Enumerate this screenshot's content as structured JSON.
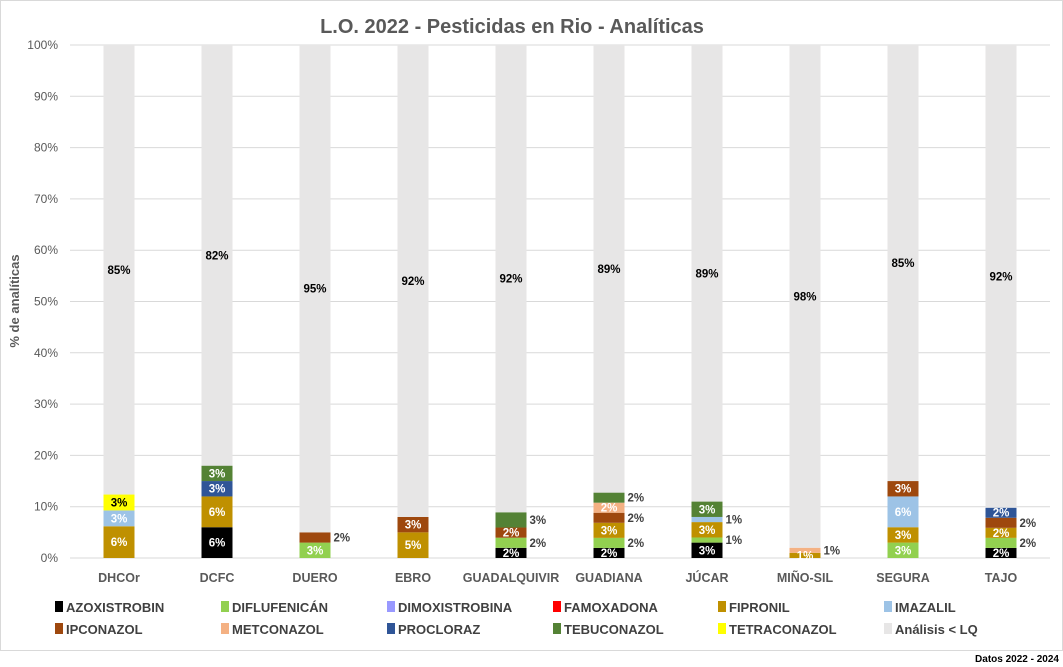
{
  "chart_data": {
    "type": "bar",
    "stacked": "percent",
    "title": "L.O. 2022 - Pesticidas en Rio - Analíticas",
    "xlabel": "",
    "ylabel": "% de analíticas",
    "ylim": [
      0,
      100
    ],
    "yticks": [
      "0%",
      "10%",
      "20%",
      "30%",
      "40%",
      "50%",
      "60%",
      "70%",
      "80%",
      "90%",
      "100%"
    ],
    "grid": true,
    "legend_position": "bottom",
    "categories": [
      "DHCOr",
      "DCFC",
      "DUERO",
      "EBRO",
      "GUADALQUIVIR",
      "GUADIANA",
      "JÚCAR",
      "MIÑO-SIL",
      "SEGURA",
      "TAJO"
    ],
    "series": [
      {
        "name": "AZOXISTROBIN",
        "color": "#000000",
        "label_color": "#ffffff",
        "values": [
          0,
          6,
          0,
          0,
          2,
          2,
          3,
          0,
          0,
          2
        ]
      },
      {
        "name": "DIFLUFENICÁN",
        "color": "#92D050",
        "label_color": "#ffffff",
        "values": [
          0,
          0,
          3,
          0,
          2,
          2,
          1,
          0,
          3,
          2
        ]
      },
      {
        "name": "DIMOXISTROBINA",
        "color": "#9999FF",
        "label_color": "#ffffff",
        "values": [
          0,
          0,
          0,
          0,
          0,
          0,
          0,
          0,
          0,
          0
        ]
      },
      {
        "name": "FAMOXADONA",
        "color": "#FF0000",
        "label_color": "#ffffff",
        "values": [
          0,
          0,
          0,
          0,
          0,
          0,
          0,
          0,
          0,
          0
        ]
      },
      {
        "name": "FIPRONIL",
        "color": "#BF9000",
        "label_color": "#ffffff",
        "values": [
          6,
          6,
          0,
          5,
          0,
          3,
          3,
          1,
          3,
          2
        ]
      },
      {
        "name": "IMAZALIL",
        "color": "#9DC3E6",
        "label_color": "#ffffff",
        "values": [
          3,
          0,
          0,
          0,
          0,
          0,
          1,
          0,
          6,
          0
        ]
      },
      {
        "name": "IPCONAZOL",
        "color": "#9E480E",
        "label_color": "#ffffff",
        "values": [
          0,
          0,
          2,
          3,
          2,
          2,
          0,
          0,
          3,
          2
        ]
      },
      {
        "name": "METCONAZOL",
        "color": "#F4B183",
        "label_color": "#ffffff",
        "values": [
          0,
          0,
          0,
          0,
          0,
          2,
          0,
          1,
          0,
          0
        ]
      },
      {
        "name": "PROCLORAZ",
        "color": "#2F5597",
        "label_color": "#ffffff",
        "values": [
          0,
          3,
          0,
          0,
          0,
          0,
          0,
          0,
          0,
          2
        ]
      },
      {
        "name": "TEBUCONAZOL",
        "color": "#548235",
        "label_color": "#ffffff",
        "values": [
          0,
          3,
          0,
          0,
          3,
          2,
          3,
          0,
          0,
          0
        ]
      },
      {
        "name": "TETRACONAZOL",
        "color": "#FFFF00",
        "label_color": "#000000",
        "values": [
          3,
          0,
          0,
          0,
          0,
          0,
          0,
          0,
          0,
          0
        ]
      },
      {
        "name": "Análisis < LQ",
        "color": "#E7E6E6",
        "label_color": "#000000",
        "values": [
          85,
          82,
          95,
          92,
          92,
          89,
          89,
          98,
          85,
          92
        ]
      }
    ]
  },
  "footer": "Datos 2022 - 2024"
}
